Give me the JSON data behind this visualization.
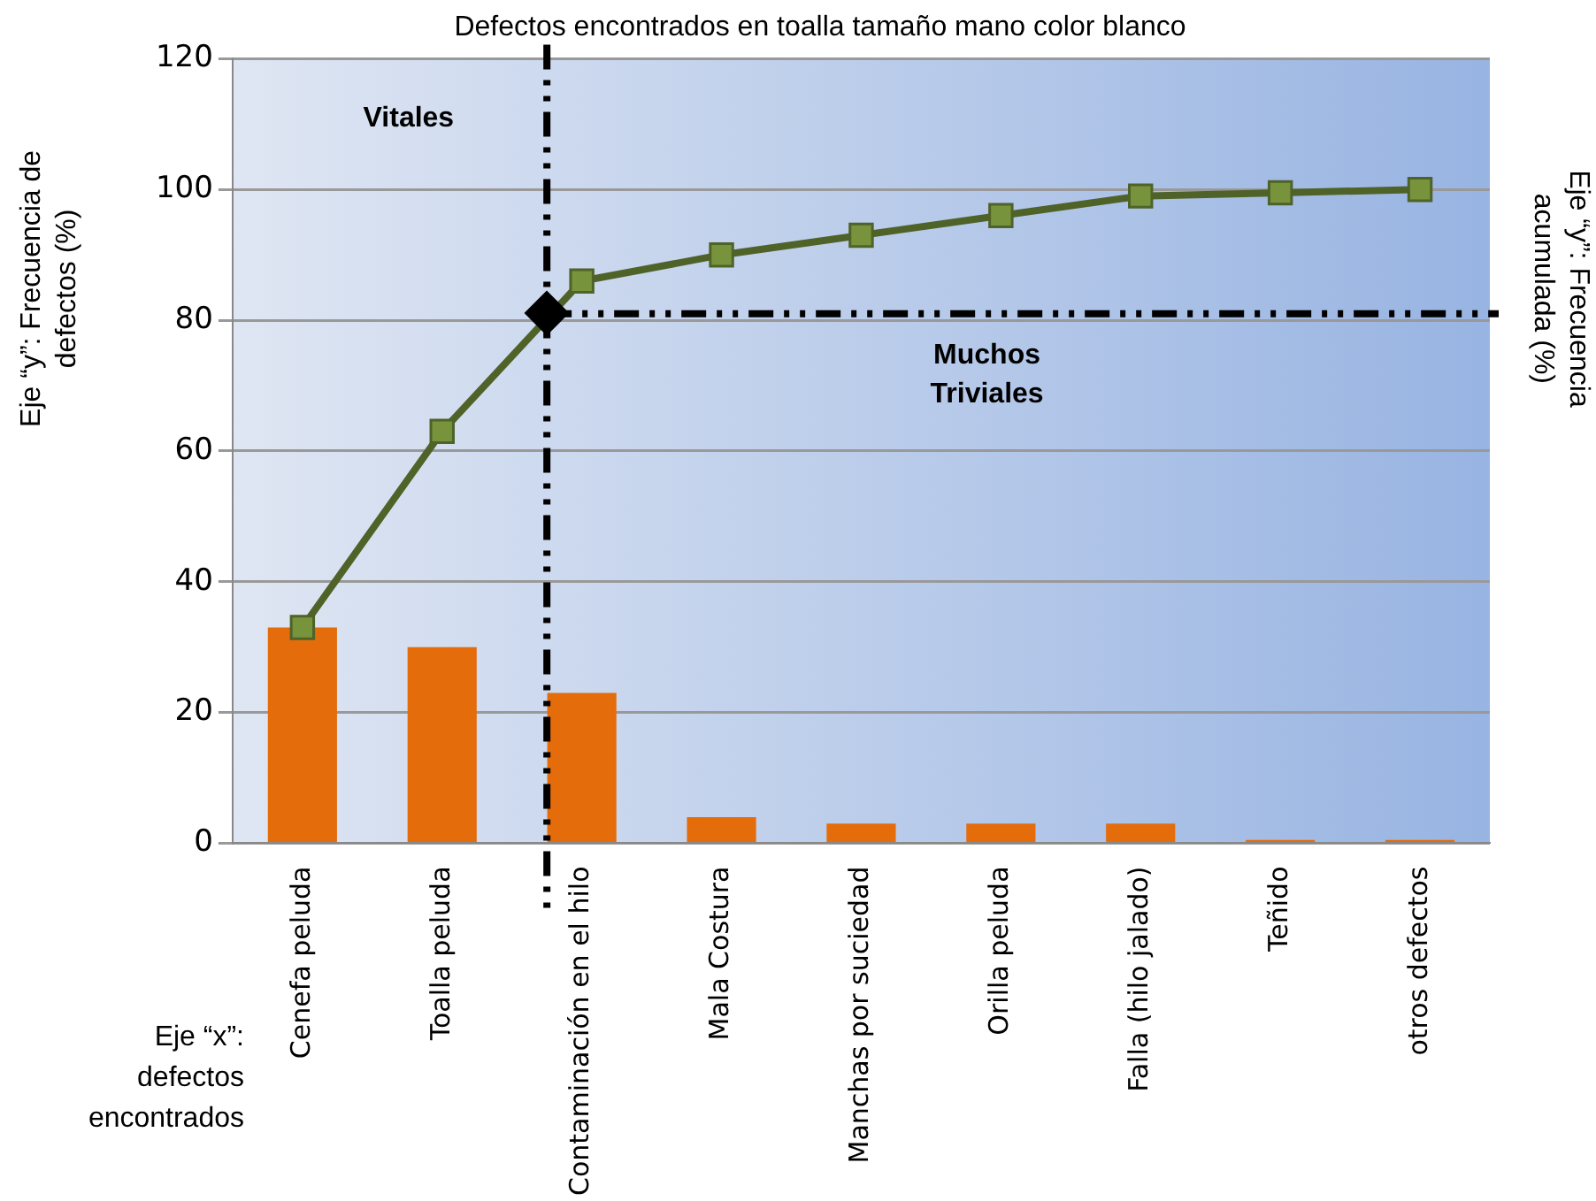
{
  "chart_data": {
    "type": "bar",
    "title": "Defectos encontrados en toalla tamaño mano color blanco",
    "xlabel": "Eje “x”: defectos encontrados",
    "ylabel": "Eje “y”: Frecuencia de defectos (%)",
    "y2label": "Eje “y”: Frecuencia acumulada (%)",
    "categories": [
      "Cenefa peluda",
      "Toalla peluda",
      "Contaminación en el hilo",
      "Mala Costura",
      "Manchas por suciedad",
      "Orilla peluda",
      "Falla (hilo jalado)",
      "Teñido",
      "otros defectos"
    ],
    "series": [
      {
        "color": "#e46c0a",
        "values": [
          33,
          30,
          23,
          4,
          3,
          3,
          3,
          0.5,
          0.5
        ]
      },
      {
        "type": "line",
        "color": "#4f6228",
        "marker": "square",
        "values": [
          33,
          63,
          86,
          90,
          93,
          96,
          99,
          99.5,
          100
        ]
      }
    ],
    "ylim": [
      0,
      120
    ],
    "yticks": [
      0,
      20,
      40,
      60,
      80,
      100,
      120
    ],
    "grid": "y",
    "legend": false,
    "ref_lines": [
      {
        "axis": "x",
        "value": "Contaminación en el hilo",
        "line_style": "dashed",
        "color": "#000000"
      },
      {
        "axis": "y",
        "value": 81,
        "line_style": "dashed",
        "color": "#000000"
      }
    ],
    "annotations": [
      "Vitales",
      "Muchos Triviales"
    ]
  }
}
